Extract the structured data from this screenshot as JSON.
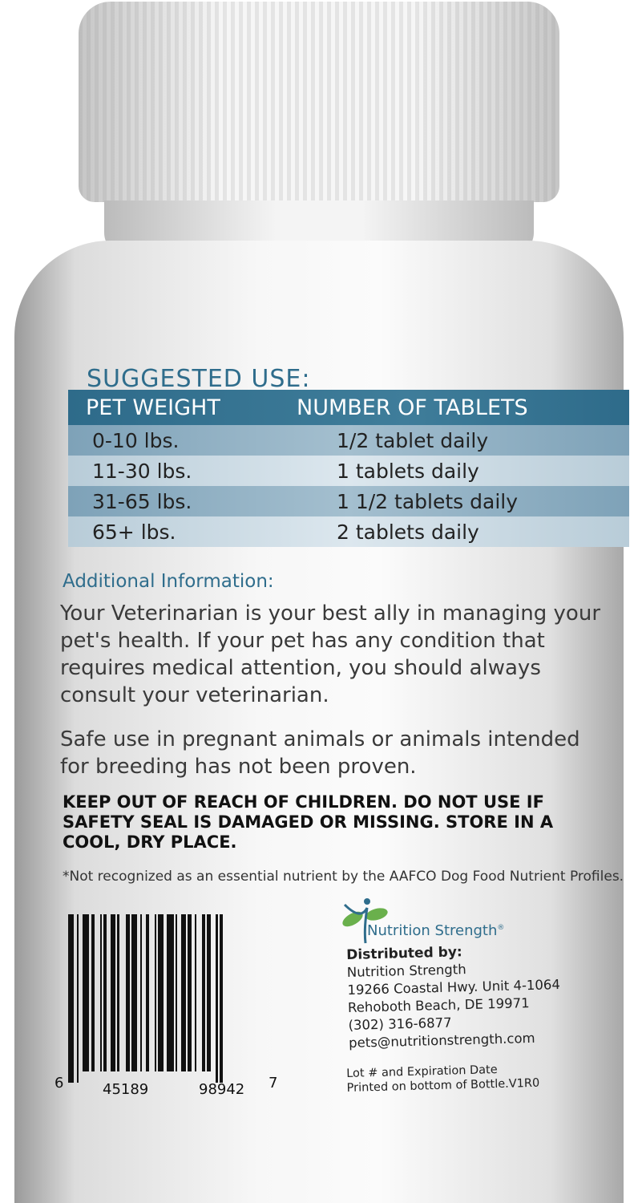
{
  "suggested_use": {
    "title": "SUGGESTED USE:",
    "headers": [
      "PET WEIGHT",
      "NUMBER OF TABLETS"
    ],
    "rows": [
      [
        "0-10 lbs.",
        "1/2 tablet daily"
      ],
      [
        "11-30 lbs.",
        "1 tablets daily"
      ],
      [
        "31-65 lbs.",
        "1 1/2 tablets daily"
      ],
      [
        "65+ lbs.",
        "2 tablets daily"
      ]
    ]
  },
  "additional": {
    "heading": "Additional Information:",
    "para1": "Your Veterinarian is your best ally in managing your pet's health. If your pet has any condition that requires medical attention,  you should always consult your veterinarian.",
    "para2": "Safe use in pregnant animals or animals intended for breeding has not been proven."
  },
  "warning": "KEEP OUT OF REACH OF CHILDREN. DO NOT USE IF SAFETY SEAL IS DAMAGED OR MISSING. STORE IN A COOL, DRY PLACE.",
  "footnote": "*Not recognized as an essential nutrient by the AAFCO Dog Food Nutrient Profiles.",
  "barcode": {
    "first": "6",
    "left": "45189",
    "right": "98942",
    "last": "7"
  },
  "brand": {
    "name": "Nutrition Strength",
    "mark": "®",
    "colors": {
      "blue": "#2f6d8c",
      "green": "#6ab04c"
    }
  },
  "distributor": {
    "heading": "Distributed by:",
    "lines": [
      "Nutrition Strength",
      "19266 Coastal Hwy. Unit 4-1064",
      "Rehoboth Beach, DE 19971",
      "(302) 316-6877",
      "pets@nutritionstrength.com"
    ]
  },
  "lot": [
    "Lot # and Expiration Date",
    "Printed on bottom of Bottle.V1R0"
  ]
}
